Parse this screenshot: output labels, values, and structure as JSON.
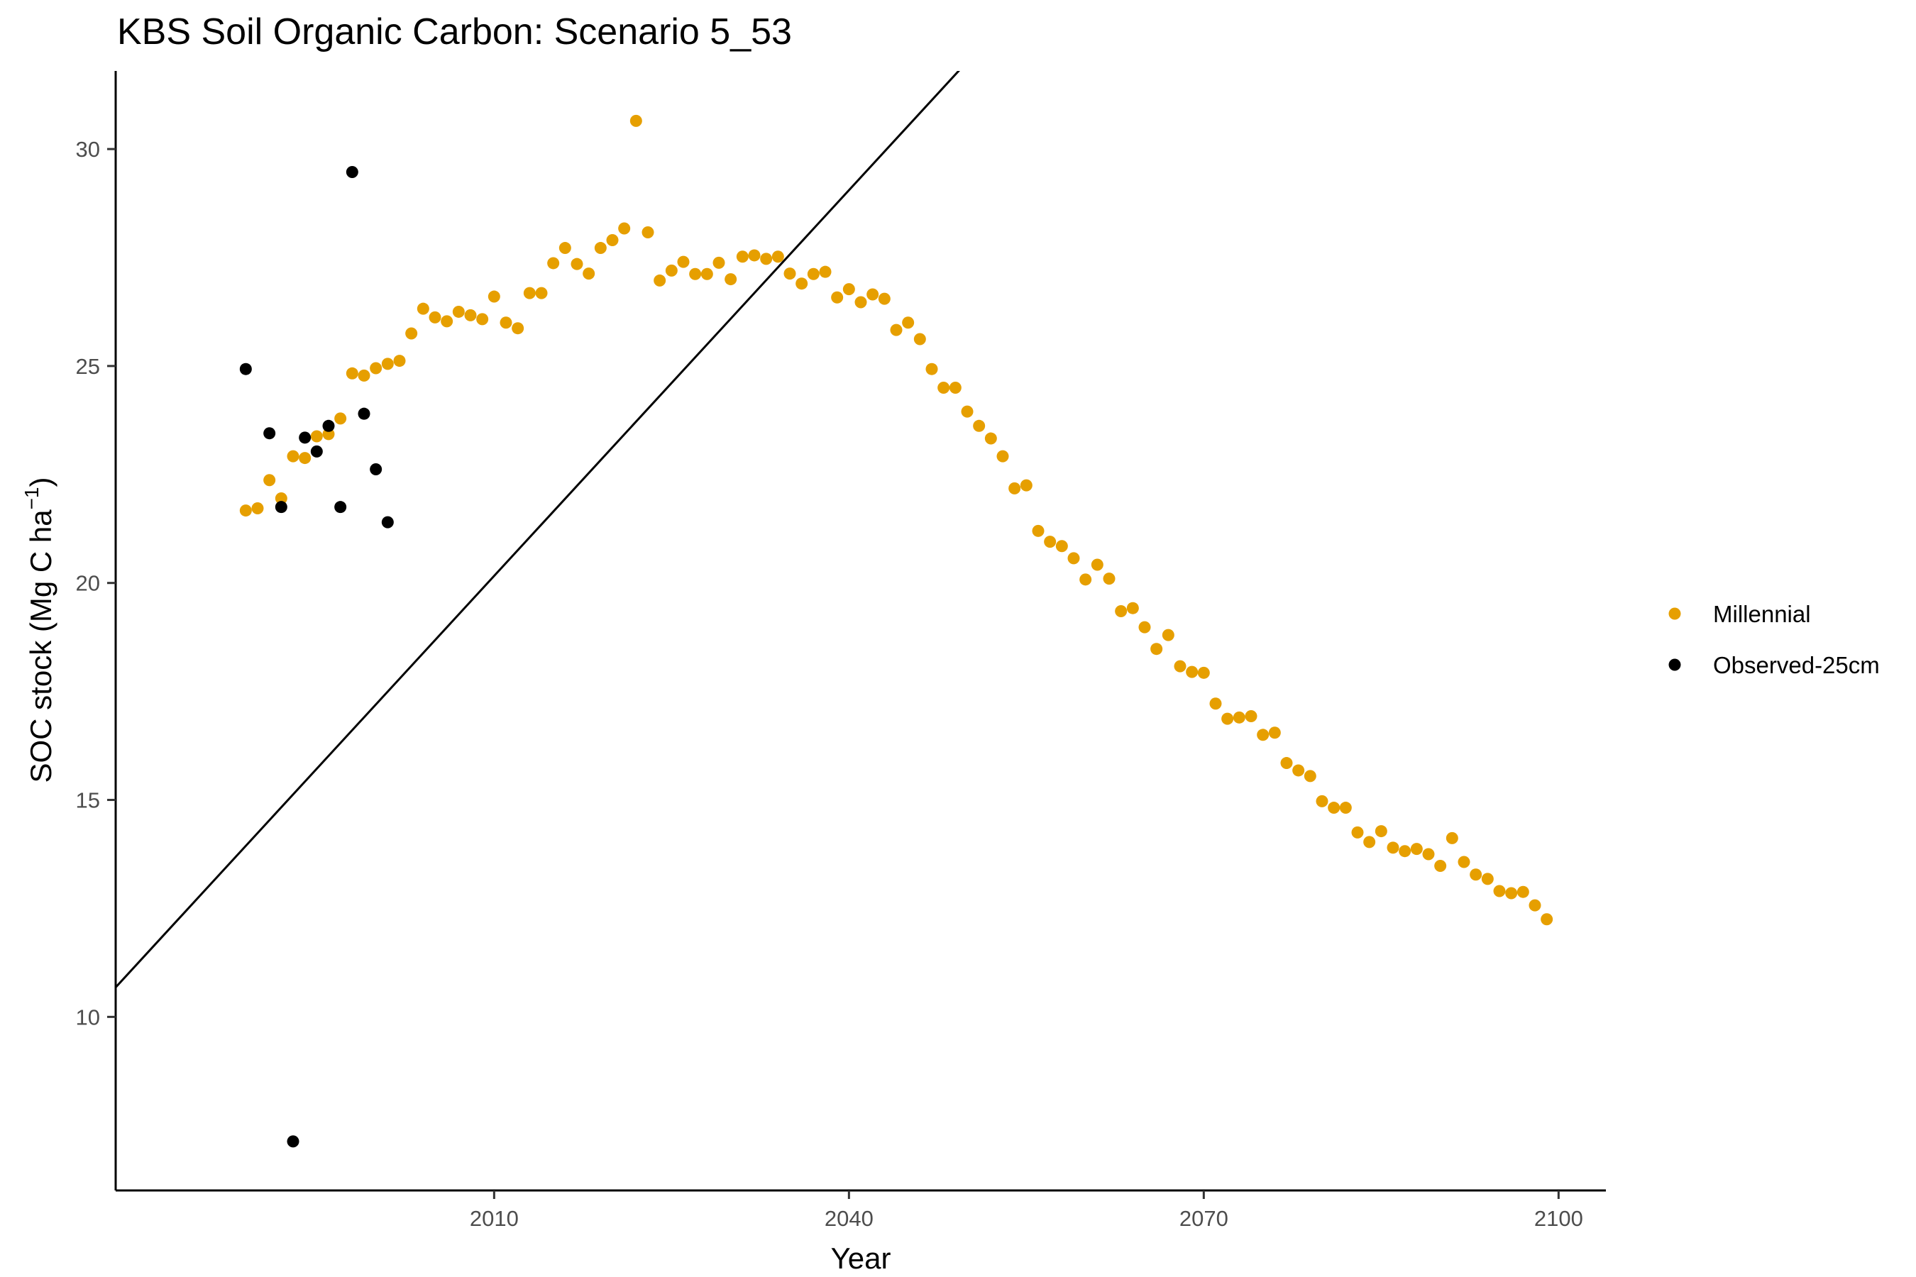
{
  "chart_data": {
    "type": "scatter",
    "title": "KBS Soil Organic Carbon: Scenario  5_53",
    "xlabel": "Year",
    "ylabel": {
      "prefix": "SOC stock (Mg C ha",
      "superscript": "−1",
      "suffix": ")"
    },
    "xlim": [
      1978,
      2104
    ],
    "ylim": [
      6.0,
      31.8
    ],
    "x_ticks": [
      {
        "value": 2010,
        "label": "2010"
      },
      {
        "value": 2040,
        "label": "2040"
      },
      {
        "value": 2070,
        "label": "2070"
      },
      {
        "value": 2100,
        "label": "2100"
      }
    ],
    "y_ticks": [
      {
        "value": 10,
        "label": "10"
      },
      {
        "value": 15,
        "label": "15"
      },
      {
        "value": 20,
        "label": "20"
      },
      {
        "value": 25,
        "label": "25"
      },
      {
        "value": 30,
        "label": "30"
      }
    ],
    "grid": false,
    "legend_position": "right",
    "series": [
      {
        "name": "Millennial",
        "color": "#E69F00",
        "x": [
          1989,
          1990,
          1991,
          1992,
          1993,
          1994,
          1995,
          1996,
          1997,
          1998,
          1999,
          2000,
          2001,
          2002,
          2003,
          2004,
          2005,
          2006,
          2007,
          2008,
          2009,
          2010,
          2011,
          2012,
          2013,
          2014,
          2015,
          2016,
          2017,
          2018,
          2019,
          2020,
          2021,
          2022,
          2023,
          2024,
          2025,
          2026,
          2027,
          2028,
          2029,
          2030,
          2031,
          2032,
          2033,
          2034,
          2035,
          2036,
          2037,
          2038,
          2039,
          2040,
          2041,
          2042,
          2043,
          2044,
          2045,
          2046,
          2047,
          2048,
          2049,
          2050,
          2051,
          2052,
          2053,
          2054,
          2055,
          2056,
          2057,
          2058,
          2059,
          2060,
          2061,
          2062,
          2063,
          2064,
          2065,
          2066,
          2067,
          2068,
          2069,
          2070,
          2071,
          2072,
          2073,
          2074,
          2075,
          2076,
          2077,
          2078,
          2079,
          2080,
          2081,
          2082,
          2083,
          2084,
          2085,
          2086,
          2087,
          2088,
          2089,
          2090,
          2091,
          2092,
          2093,
          2094,
          2095,
          2096,
          2097,
          2098,
          2099
        ],
        "y": [
          21.67,
          21.72,
          22.37,
          21.95,
          22.92,
          22.88,
          23.38,
          23.43,
          23.79,
          24.83,
          24.78,
          24.95,
          25.05,
          25.12,
          25.75,
          26.32,
          26.12,
          26.03,
          26.25,
          26.17,
          26.08,
          26.6,
          26.0,
          25.87,
          26.68,
          26.68,
          27.37,
          27.72,
          27.35,
          27.13,
          27.72,
          27.9,
          28.17,
          30.65,
          28.08,
          26.97,
          27.2,
          27.4,
          27.12,
          27.12,
          27.38,
          27.0,
          27.52,
          27.55,
          27.47,
          27.52,
          27.13,
          26.9,
          27.12,
          27.17,
          26.58,
          26.77,
          26.47,
          26.65,
          26.55,
          25.83,
          26.0,
          25.62,
          24.93,
          24.5,
          24.5,
          23.95,
          23.62,
          23.33,
          22.92,
          22.18,
          22.25,
          21.2,
          20.95,
          20.85,
          20.57,
          20.08,
          20.42,
          20.1,
          19.35,
          19.42,
          18.98,
          18.48,
          18.8,
          18.08,
          17.95,
          17.93,
          17.22,
          16.87,
          16.9,
          16.93,
          16.5,
          16.55,
          15.85,
          15.68,
          15.55,
          14.97,
          14.82,
          14.82,
          14.25,
          14.03,
          14.28,
          13.9,
          13.82,
          13.87,
          13.75,
          13.48,
          14.12,
          13.57,
          13.28,
          13.18,
          12.9,
          12.85,
          12.88,
          12.57,
          12.25
        ]
      },
      {
        "name": "Observed-25cm",
        "color": "#000000",
        "x": [
          1989,
          1991,
          1992,
          1993,
          1994,
          1995,
          1996,
          1997,
          1998,
          1999,
          2000,
          2001
        ],
        "y": [
          24.93,
          23.45,
          21.75,
          7.13,
          23.35,
          23.03,
          23.62,
          21.75,
          29.47,
          23.9,
          22.62,
          21.4
        ]
      }
    ],
    "trend_line": {
      "color": "#000000",
      "slope": 0.2963,
      "intercept": -575.4
    }
  }
}
